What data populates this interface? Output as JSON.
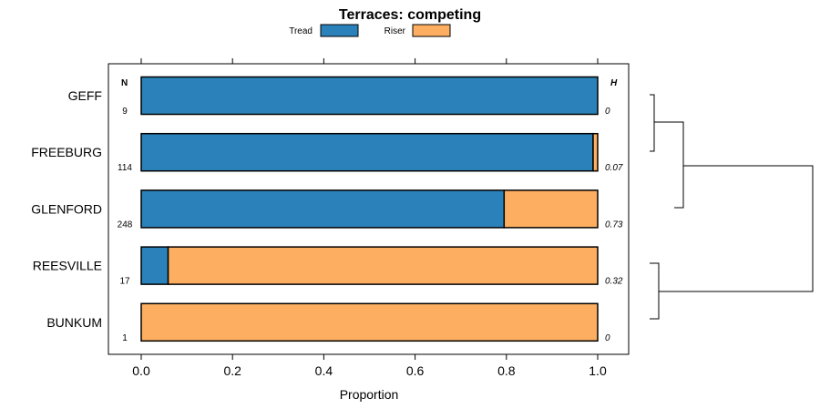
{
  "chart_data": {
    "type": "bar",
    "subtype": "stacked-horizontal-proportion",
    "title": "Terraces: competing",
    "xlabel": "Proportion",
    "ylabel": "",
    "xlim": [
      -0.07,
      1.07
    ],
    "x_ticks": [
      0.0,
      0.2,
      0.4,
      0.6,
      0.8,
      1.0
    ],
    "x_tick_labels": [
      "0.0",
      "0.2",
      "0.4",
      "0.6",
      "0.8",
      "1.0"
    ],
    "categories": [
      "GEFF",
      "FREEBURG",
      "GLENFORD",
      "REESVILLE",
      "BUNKUM"
    ],
    "series": [
      {
        "name": "Tread",
        "color": "#2b82ba",
        "values": [
          1.0,
          0.99,
          0.795,
          0.059,
          0.0
        ]
      },
      {
        "name": "Riser",
        "color": "#fdae61",
        "values": [
          0.0,
          0.01,
          0.205,
          0.941,
          1.0
        ]
      }
    ],
    "legend": {
      "position": "top",
      "entries": [
        "Tread",
        "Riser"
      ]
    },
    "n_header": "N",
    "n_values": [
      "9",
      "114",
      "248",
      "17",
      "1"
    ],
    "h_header": "H",
    "h_values": [
      "0",
      "0.07",
      "0.73",
      "0.32",
      "0"
    ],
    "dendrogram": {
      "description": "hierarchical clustering of categories",
      "merges": [
        {
          "members": [
            "GEFF",
            "FREEBURG"
          ],
          "height": 0.1
        },
        {
          "members": [
            "GEFF",
            "FREEBURG",
            "GLENFORD"
          ],
          "height": 0.2
        },
        {
          "members": [
            "REESVILLE",
            "BUNKUM"
          ],
          "height": 0.06
        },
        {
          "members": [
            "GEFF",
            "FREEBURG",
            "GLENFORD",
            "REESVILLE",
            "BUNKUM"
          ],
          "height": 1.0
        }
      ]
    }
  }
}
